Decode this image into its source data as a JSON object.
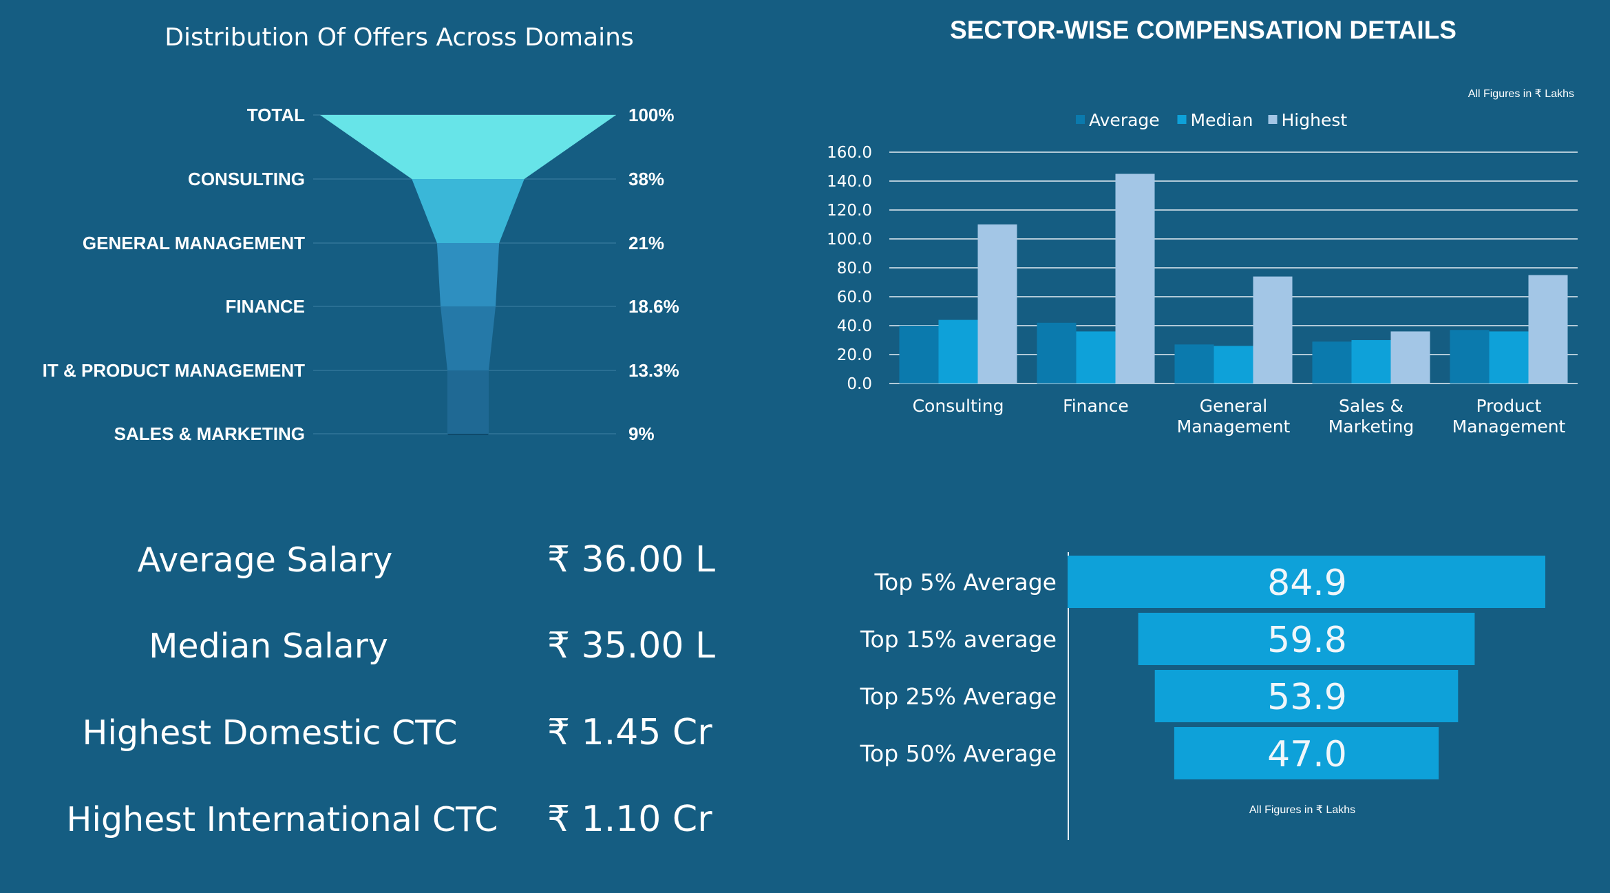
{
  "chart_data": [
    {
      "type": "funnel",
      "title": "Distribution Of Offers Across Domains",
      "categories": [
        "TOTAL",
        "CONSULTING",
        "GENERAL MANAGEMENT",
        "FINANCE",
        "IT & PRODUCT MANAGEMENT",
        "SALES & MARKETING"
      ],
      "values": [
        100,
        38,
        21,
        18.6,
        13.3,
        9
      ],
      "value_labels": [
        "100%",
        "38%",
        "21%",
        "18.6%",
        "13.3%",
        "9%"
      ],
      "colors": [
        "#67e4e8",
        "#3ab7d8",
        "#2e8fc0",
        "#2579a8",
        "#1f6994",
        "#0f4a6b"
      ]
    },
    {
      "type": "bar",
      "title": "SECTOR-WISE COMPENSATION DETAILS",
      "note": "All Figures in ₹ Lakhs",
      "categories": [
        "Consulting",
        "Finance",
        "General Management",
        "Sales & Marketing",
        "Product Management"
      ],
      "category_lines": [
        [
          "Consulting"
        ],
        [
          "Finance"
        ],
        [
          "General",
          "Management"
        ],
        [
          "Sales &",
          "Marketing"
        ],
        [
          "Product",
          "Management"
        ]
      ],
      "series": [
        {
          "name": "Average",
          "values": [
            40,
            42,
            27,
            29,
            37
          ],
          "color": "#0b7aad"
        },
        {
          "name": "Median",
          "values": [
            44,
            36,
            26,
            30,
            36
          ],
          "color": "#0ea1d9"
        },
        {
          "name": "Highest",
          "values": [
            110,
            145,
            74,
            36,
            75
          ],
          "color": "#a3c6e6"
        }
      ],
      "ylim": [
        0,
        160
      ],
      "yticks": [
        "0.0",
        "20.0",
        "40.0",
        "60.0",
        "80.0",
        "100.0",
        "120.0",
        "140.0",
        "160.0"
      ],
      "grid": true,
      "legend_position": "top"
    },
    {
      "type": "bar",
      "orientation": "horizontal-centered",
      "categories": [
        "Top 5% Average",
        "Top 15% average",
        "Top 25% Average",
        "Top 50% Average"
      ],
      "values": [
        84.9,
        59.8,
        53.9,
        47.0
      ],
      "value_labels": [
        "84.9",
        "59.8",
        "53.9",
        "47.0"
      ],
      "note": "All Figures in ₹ Lakhs",
      "color": "#0ea1d9"
    }
  ],
  "stats": [
    {
      "label": "Average Salary",
      "value": "₹ 36.00 L"
    },
    {
      "label": "Median Salary",
      "value": "₹ 35.00 L"
    },
    {
      "label": "Highest Domestic CTC",
      "value": "₹ 1.45 Cr"
    },
    {
      "label": "Highest International CTC",
      "value": "₹ 1.10 Cr"
    }
  ],
  "colors": {
    "background": "#155d82",
    "gridline": "#e6eef4",
    "text": "#ffffff"
  }
}
